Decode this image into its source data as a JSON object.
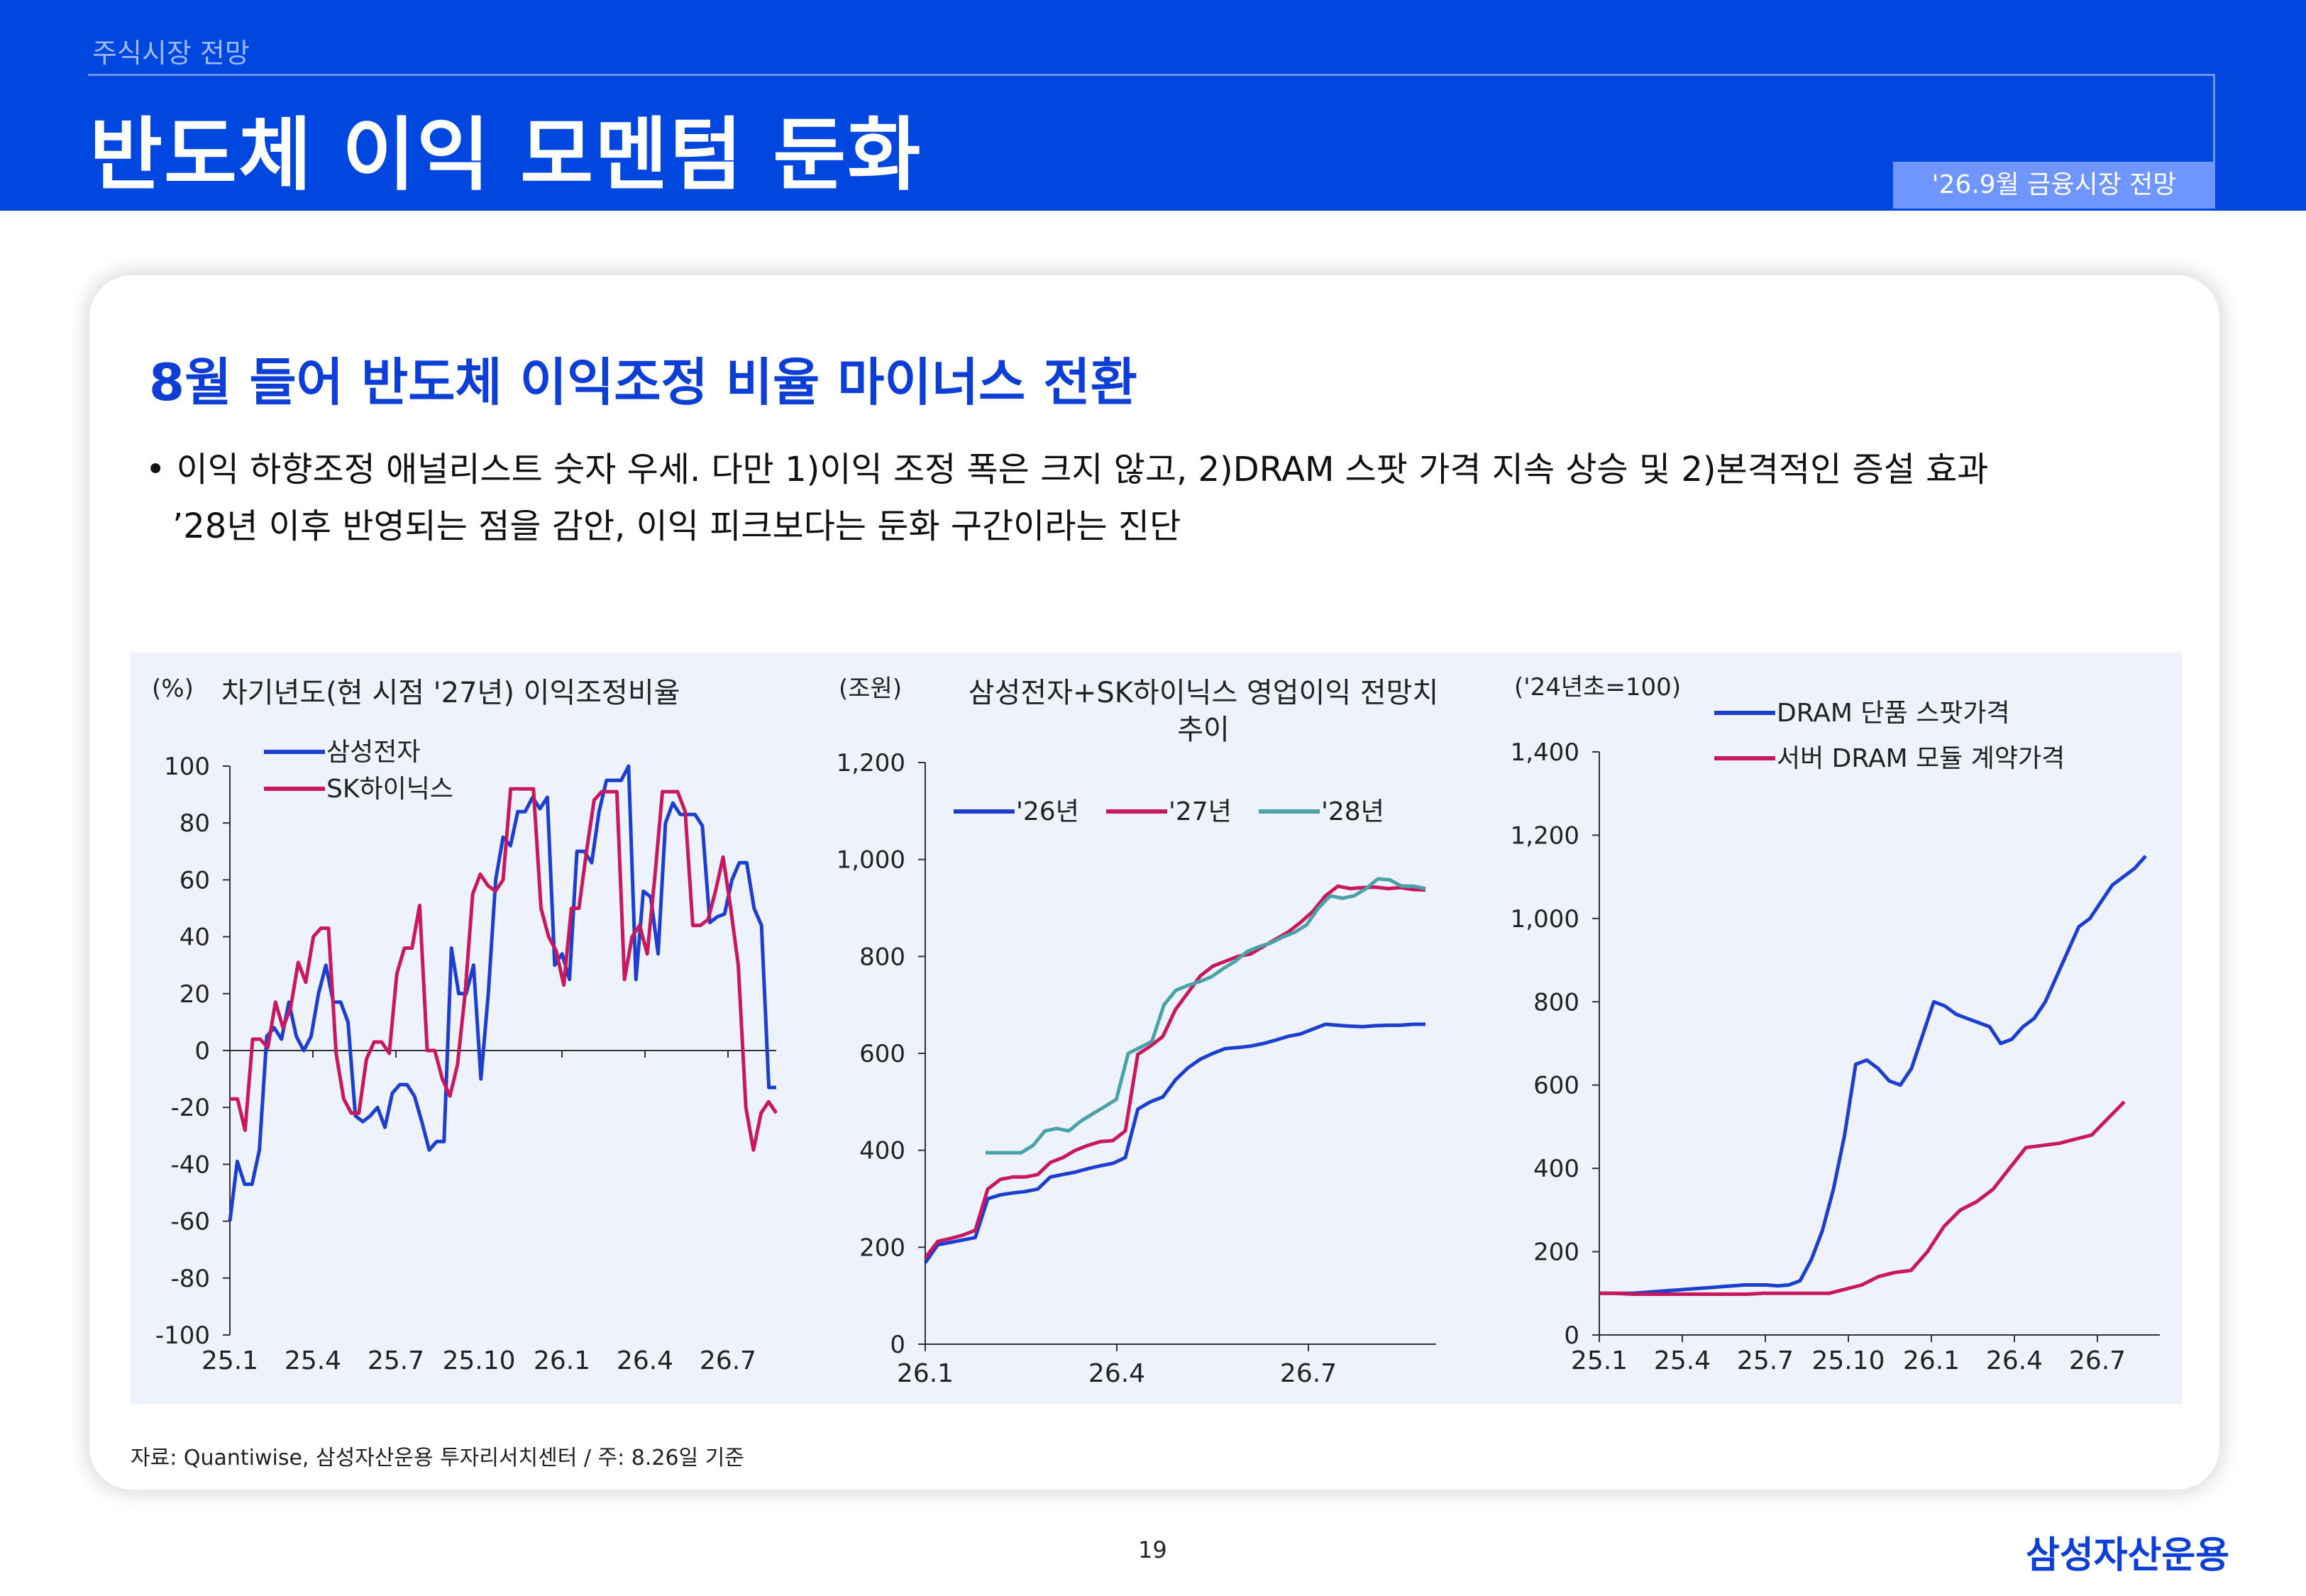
{
  "header": {
    "section": "주식시장 전망",
    "title": "반도체 이익 모멘텀 둔화",
    "tag": "'26.9월 금융시장 전망"
  },
  "card": {
    "title": "8월 들어 반도체 이익조정 비율 마이너스 전환",
    "bullet_line1": "• 이익 하향조정 애널리스트 숫자 우세. 다만 1)이익 조정 폭은 크지 않고, 2)DRAM 스팟 가격 지속 상승 및 2)본격적인 증설 효과",
    "bullet_line2": "’28년 이후 반영되는 점을 감안, 이익 피크보다는 둔화 구간이라는 진단"
  },
  "source": "자료: Quantiwise, 삼성자산운용 투자리서치센터 / 주: 8.26일 기준",
  "page_number": "19",
  "logo": "삼성자산운용",
  "colors": {
    "blue": "#1c3fd0",
    "magenta": "#c8195e",
    "teal": "#4aa3a6",
    "header": "#0047e0"
  },
  "chart_data": [
    {
      "type": "line",
      "title": "차기년도(현 시점 '27년) 이익조정비율",
      "unit": "(%)",
      "ylim": [
        -100,
        100
      ],
      "yticks": [
        100,
        80,
        60,
        40,
        20,
        0,
        -20,
        -40,
        -60,
        -80,
        -100
      ],
      "xticks": [
        "25.1",
        "25.4",
        "25.7",
        "25.10",
        "26.1",
        "26.4",
        "26.7"
      ],
      "legend": "top-left",
      "grid": false,
      "series": [
        {
          "name": "삼성전자",
          "color": "#1c3fd0",
          "values": [
            -60,
            -39,
            -47,
            -47,
            -35,
            5,
            8,
            4,
            17,
            5,
            0,
            5,
            20,
            30,
            17,
            17,
            10,
            -23,
            -25,
            -23,
            -20,
            -27,
            -15,
            -12,
            -12,
            -16,
            -25,
            -35,
            -32,
            -32,
            36,
            20,
            20,
            30,
            -10,
            20,
            60,
            75,
            72,
            84,
            84,
            89,
            85,
            89,
            30,
            34,
            25,
            70,
            70,
            66,
            84,
            95,
            95,
            95,
            100,
            25,
            56,
            54,
            34,
            80,
            87,
            83,
            83,
            83,
            79,
            45,
            47,
            48,
            60,
            66,
            66,
            50,
            44,
            -13,
            -13
          ],
          "legend_label": "삼성전자"
        },
        {
          "name": "SK하이닉스",
          "color": "#c8195e",
          "values": [
            -17,
            -17,
            -28,
            4,
            4,
            1,
            17,
            8,
            15,
            31,
            24,
            40,
            43,
            43,
            -1,
            -17,
            -22,
            -22,
            -3,
            3,
            3,
            -1,
            27,
            36,
            36,
            51,
            0,
            0,
            -10,
            -16,
            -5,
            20,
            55,
            62,
            58,
            56,
            60,
            92,
            92,
            92,
            92,
            50,
            40,
            35,
            23,
            50,
            50,
            70,
            88,
            91,
            91,
            91,
            25,
            40,
            44,
            34,
            61,
            91,
            91,
            91,
            84,
            44,
            44,
            46,
            56,
            68,
            50,
            30,
            -20,
            -35,
            -22,
            -18,
            -22
          ],
          "legend_label": "SK하이닉스"
        }
      ]
    },
    {
      "type": "line",
      "title": "삼성전자+SK하이닉스 영업이익 전망치 추이",
      "unit": "(조원)",
      "ylim": [
        0,
        1200
      ],
      "yticks": [
        "1,200",
        "1,000",
        "800",
        "600",
        "400",
        "200",
        "0"
      ],
      "xticks": [
        "26.1",
        "26.4",
        "26.7"
      ],
      "legend": "top",
      "grid": false,
      "series": [
        {
          "name": "'26년",
          "color": "#1c3fd0",
          "values": [
            168,
            205,
            210,
            215,
            220,
            300,
            308,
            312,
            315,
            320,
            345,
            350,
            355,
            362,
            368,
            373,
            385,
            485,
            500,
            510,
            545,
            570,
            588,
            600,
            610,
            612,
            615,
            620,
            627,
            635,
            640,
            650,
            660,
            658,
            656,
            655,
            657,
            658,
            658,
            660,
            660
          ]
        },
        {
          "name": "'27년",
          "color": "#c8195e",
          "values": [
            178,
            212,
            218,
            225,
            235,
            320,
            340,
            345,
            345,
            350,
            375,
            385,
            400,
            410,
            418,
            420,
            440,
            598,
            615,
            635,
            690,
            725,
            760,
            780,
            790,
            800,
            805,
            820,
            835,
            850,
            870,
            893,
            925,
            945,
            940,
            942,
            943,
            940,
            942,
            938,
            937
          ]
        },
        {
          "name": "'28년",
          "color": "#4aa3a6",
          "values": [
            395,
            395,
            395,
            395,
            410,
            440,
            445,
            440,
            460,
            475,
            490,
            505,
            600,
            612,
            625,
            700,
            730,
            740,
            748,
            758,
            775,
            790,
            810,
            820,
            828,
            840,
            850,
            865,
            900,
            925,
            920,
            925,
            940,
            960,
            958,
            945,
            945,
            940
          ]
        }
      ]
    },
    {
      "type": "line",
      "title": "",
      "unit": "('24년초=100)",
      "ylim": [
        0,
        1400
      ],
      "yticks": [
        "1,400",
        "1,200",
        "1,000",
        "800",
        "600",
        "400",
        "200",
        "0"
      ],
      "xticks": [
        "25.1",
        "25.4",
        "25.7",
        "25.10",
        "26.1",
        "26.4",
        "26.7"
      ],
      "legend": "top-right",
      "grid": false,
      "series": [
        {
          "name": "DRAM 단품 스팟가격",
          "color": "#1c3fd0",
          "values": [
            100,
            100,
            100,
            100,
            102,
            104,
            106,
            108,
            110,
            112,
            114,
            116,
            118,
            120,
            120,
            120,
            118,
            120,
            130,
            180,
            250,
            350,
            480,
            650,
            660,
            640,
            610,
            600,
            640,
            720,
            800,
            790,
            770,
            760,
            750,
            740,
            700,
            710,
            740,
            760,
            800,
            860,
            920,
            980,
            1000,
            1040,
            1080,
            1100,
            1120,
            1150
          ]
        },
        {
          "name": "서버 DRAM 모듈 계약가격",
          "color": "#c8195e",
          "values": [
            100,
            100,
            98,
            98,
            98,
            98,
            98,
            98,
            98,
            98,
            100,
            100,
            100,
            100,
            100,
            110,
            120,
            140,
            150,
            155,
            200,
            260,
            300,
            320,
            350,
            400,
            450,
            455,
            460,
            470,
            480,
            520,
            560
          ]
        }
      ]
    }
  ]
}
